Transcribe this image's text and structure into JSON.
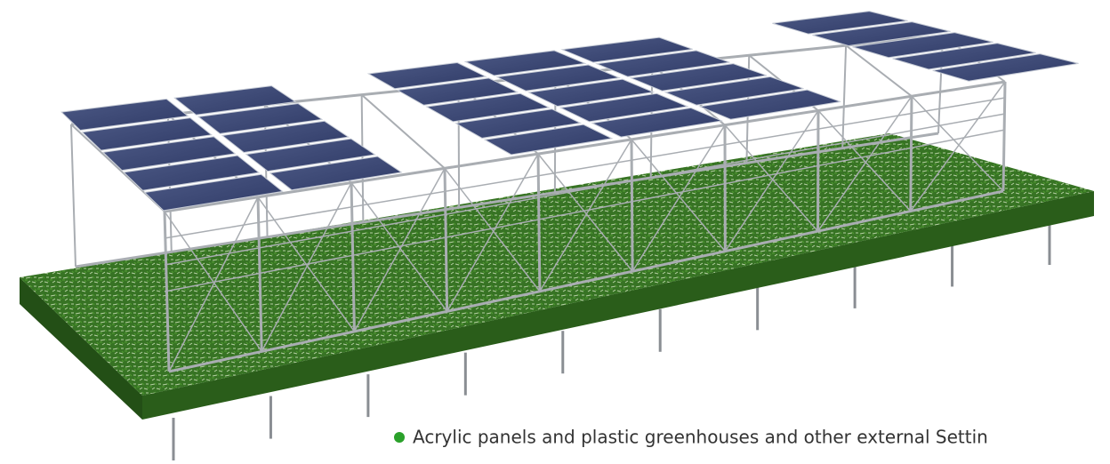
{
  "caption": {
    "text": "Acrylic panels and plastic greenhouses and other external Settin"
  }
}
